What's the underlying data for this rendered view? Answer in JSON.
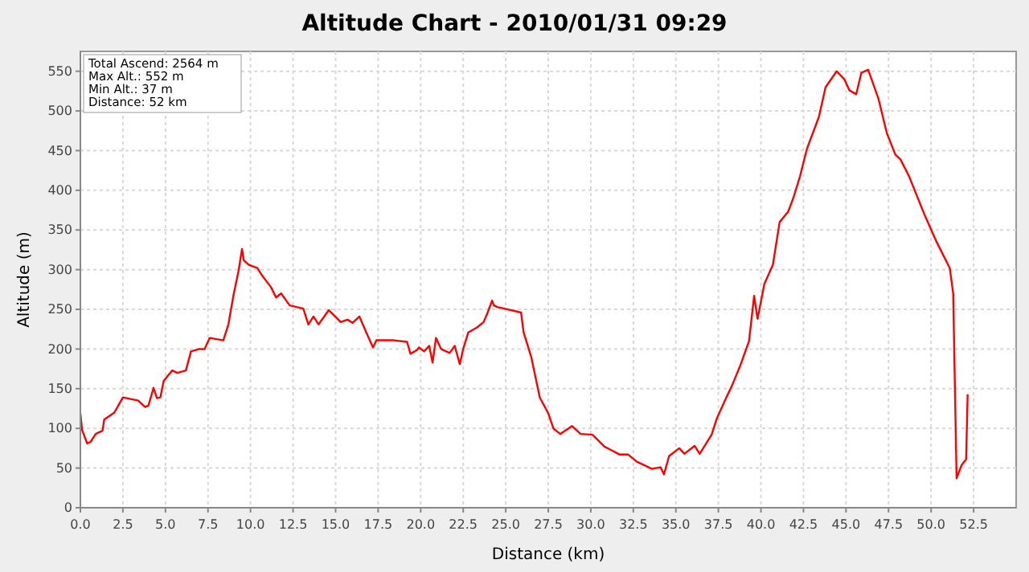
{
  "chart_data": {
    "type": "line",
    "title": "Altitude Chart - 2010/01/31 09:29",
    "xlabel": "Distance (km)",
    "ylabel": "Altitude (m)",
    "annotations": [
      "Total Ascend: 2564 m",
      "Max Alt.: 552 m",
      "Min Alt.: 37 m",
      "Distance: 52 km"
    ],
    "xlim": [
      0,
      55
    ],
    "xticks": [
      {
        "value": 0,
        "label": "0.0"
      },
      {
        "value": 2.5,
        "label": "2.5"
      },
      {
        "value": 5,
        "label": "5.0"
      },
      {
        "value": 7.5,
        "label": "7.5"
      },
      {
        "value": 10,
        "label": "10.0"
      },
      {
        "value": 12.5,
        "label": "12.5"
      },
      {
        "value": 15,
        "label": "15.0"
      },
      {
        "value": 17.5,
        "label": "17.5"
      },
      {
        "value": 20,
        "label": "20.0"
      },
      {
        "value": 22.5,
        "label": "22.5"
      },
      {
        "value": 25,
        "label": "25.0"
      },
      {
        "value": 27.5,
        "label": "27.5"
      },
      {
        "value": 30,
        "label": "30.0"
      },
      {
        "value": 32.5,
        "label": "32.5"
      },
      {
        "value": 35,
        "label": "35.0"
      },
      {
        "value": 37.5,
        "label": "37.5"
      },
      {
        "value": 40,
        "label": "40.0"
      },
      {
        "value": 42.5,
        "label": "42.5"
      },
      {
        "value": 45,
        "label": "45.0"
      },
      {
        "value": 47.5,
        "label": "47.5"
      },
      {
        "value": 50,
        "label": "50.0"
      },
      {
        "value": 52.5,
        "label": "52.5"
      }
    ],
    "ylim": [
      0,
      575
    ],
    "yticks": [
      0,
      50,
      100,
      150,
      200,
      250,
      300,
      350,
      400,
      450,
      500,
      550
    ],
    "grid": true,
    "line_style": "solid",
    "series": [
      {
        "color": "#ff0000",
        "x": [
          0,
          0.1,
          0.4,
          0.6,
          0.9,
          1.3,
          1.4,
          2.0,
          2.5,
          3.4,
          3.8,
          4.0,
          4.3,
          4.5,
          4.7,
          4.9,
          5.4,
          5.7,
          6.2,
          6.5,
          7.0,
          7.3,
          7.6,
          8.4,
          8.7,
          9.0,
          9.3,
          9.5,
          9.6,
          9.9,
          10.4,
          10.7,
          11.2,
          11.5,
          11.8,
          12.3,
          13.1,
          13.4,
          13.7,
          14.0,
          14.6,
          15.3,
          15.7,
          16.0,
          16.4,
          16.8,
          17.2,
          17.4,
          18.4,
          19.2,
          19.4,
          19.8,
          19.9,
          20.2,
          20.5,
          20.7,
          20.9,
          21.2,
          21.7,
          22.0,
          22.3,
          22.5,
          22.8,
          23.3,
          23.7,
          23.9,
          24.2,
          24.3,
          24.5,
          25.9,
          26.05,
          26.5,
          27.0,
          27.5,
          27.8,
          28.2,
          28.9,
          29.4,
          30.1,
          30.8,
          31.7,
          32.2,
          32.7,
          33.6,
          34.1,
          34.3,
          34.6,
          35.2,
          35.5,
          36.1,
          36.4,
          37.1,
          37.4,
          37.9,
          38.3,
          38.8,
          39.3,
          39.6,
          39.8,
          40.2,
          40.7,
          41.1,
          41.6,
          41.9,
          42.3,
          42.7,
          43.4,
          43.8,
          44.45,
          44.9,
          45.2,
          45.6,
          45.9,
          46.3,
          46.9,
          47.4,
          47.9,
          48.2,
          48.7,
          49.6,
          50.3,
          50.7,
          51.1,
          51.3,
          51.5,
          51.8,
          52.06,
          52.15
        ],
        "values": [
          119,
          98,
          81,
          83,
          93,
          97,
          111,
          120,
          139,
          135,
          127,
          129,
          151,
          138,
          139,
          160,
          173,
          170,
          173,
          197,
          200,
          200,
          214,
          211,
          231,
          268,
          299,
          326,
          312,
          306,
          302,
          292,
          278,
          265,
          270,
          255,
          251,
          231,
          241,
          231,
          249,
          234,
          237,
          233,
          241,
          221,
          202,
          211,
          211,
          209,
          194,
          199,
          202,
          197,
          204,
          183,
          214,
          200,
          195,
          204,
          181,
          200,
          221,
          227,
          234,
          244,
          261,
          255,
          253,
          246,
          221,
          190,
          139,
          119,
          100,
          93,
          103,
          93,
          92,
          77,
          67,
          67,
          58,
          49,
          51,
          42,
          65,
          75,
          68,
          78,
          68,
          92,
          112,
          136,
          154,
          180,
          210,
          267,
          238,
          282,
          306,
          360,
          373,
          390,
          418,
          452,
          492,
          530,
          550,
          540,
          526,
          521,
          548,
          552,
          516,
          472,
          445,
          439,
          418,
          370,
          336,
          319,
          302,
          270,
          37,
          54,
          61,
          143
        ]
      }
    ]
  }
}
